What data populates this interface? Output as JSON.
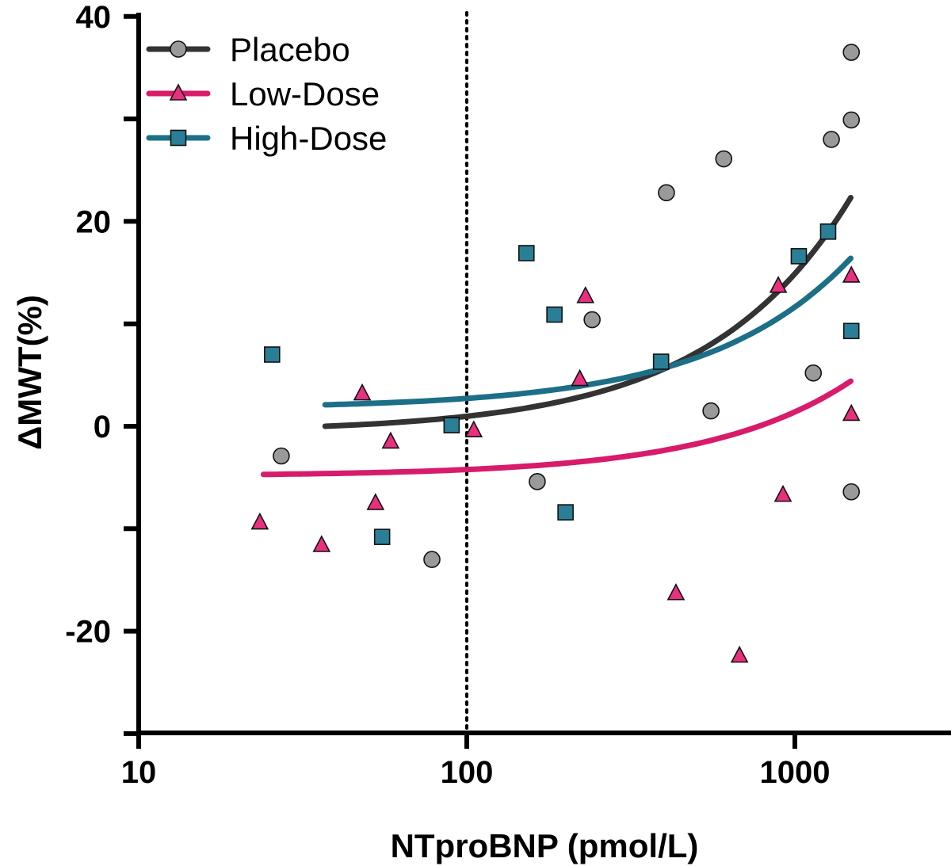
{
  "chart_data": {
    "type": "scatter",
    "title": "",
    "xlabel": "NTproBNP (pmol/L)",
    "ylabel": "ΔMWT(%)",
    "xscale": "log",
    "xlim": [
      10,
      3000
    ],
    "ylim": [
      -30,
      40
    ],
    "xticks": [
      10,
      100,
      1000
    ],
    "xtick_labels": [
      "10",
      "100",
      "1000"
    ],
    "yticks": [
      40,
      30,
      20,
      10,
      0,
      -10,
      -20,
      -30
    ],
    "ytick_labels": [
      "40",
      "",
      "20",
      "",
      "0",
      "",
      "-20",
      ""
    ],
    "reference_line": {
      "x": 100,
      "style": "dotted"
    },
    "legend_position": "top-left",
    "series": [
      {
        "name": "Placebo",
        "marker": "circle",
        "marker_color": "#9a9a9a",
        "line_color": "#333333",
        "fit": {
          "type": "linear",
          "intercept": -0.57,
          "slope": 0.01546,
          "xrange": [
            37,
            1480
          ]
        },
        "points": [
          [
            27.2,
            -2.9
          ],
          [
            78.3,
            -13.0
          ],
          [
            241,
            10.4
          ],
          [
            164,
            -5.4
          ],
          [
            406,
            22.8
          ],
          [
            607,
            26.1
          ],
          [
            555,
            1.5
          ],
          [
            1138,
            5.2
          ],
          [
            1292,
            28.0
          ],
          [
            1486,
            36.5
          ],
          [
            1486,
            29.9
          ],
          [
            1486,
            -6.4
          ]
        ]
      },
      {
        "name": "Low-Dose",
        "marker": "triangle",
        "marker_color": "#e8307f",
        "line_color": "#d81b6a",
        "fit": {
          "type": "linear",
          "intercept": -4.85,
          "slope": 0.00625,
          "xrange": [
            24,
            1480
          ]
        },
        "points": [
          [
            23.4,
            -9.4
          ],
          [
            36.1,
            -11.6
          ],
          [
            48.0,
            3.2
          ],
          [
            52.7,
            -7.5
          ],
          [
            58.6,
            -1.5
          ],
          [
            105,
            -0.4
          ],
          [
            221,
            4.6
          ],
          [
            230,
            12.7
          ],
          [
            434,
            -16.3
          ],
          [
            678,
            -22.4
          ],
          [
            890,
            13.7
          ],
          [
            920,
            -6.7
          ],
          [
            1486,
            14.7
          ],
          [
            1486,
            1.2
          ]
        ]
      },
      {
        "name": "High-Dose",
        "marker": "square",
        "marker_color": "#2a7f96",
        "line_color": "#1c6f86",
        "fit": {
          "type": "linear",
          "intercept": 1.73,
          "slope": 0.00991,
          "xrange": [
            37,
            1480
          ]
        },
        "points": [
          [
            25.5,
            7.0
          ],
          [
            55.2,
            -10.8
          ],
          [
            89.9,
            0.1
          ],
          [
            152,
            16.9
          ],
          [
            185,
            10.9
          ],
          [
            200,
            -8.4
          ],
          [
            391,
            6.3
          ],
          [
            1028,
            16.6
          ],
          [
            1263,
            19.0
          ],
          [
            1486,
            9.3
          ]
        ]
      }
    ]
  }
}
